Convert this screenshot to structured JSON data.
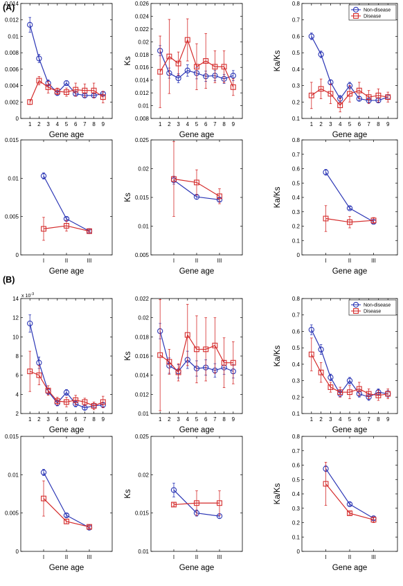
{
  "figure": {
    "panel_labels": [
      "(A)",
      "(B)"
    ]
  },
  "style": {
    "non_disease_color": "#2a35b5",
    "disease_color": "#d42a2a"
  },
  "chart_data": [
    {
      "id": "A1",
      "type": "line",
      "xlabel": "Gene age",
      "ylabel": "Ka",
      "categories": [
        "1",
        "2",
        "3",
        "4",
        "5",
        "6",
        "7",
        "8",
        "9"
      ],
      "yticks": [
        "0",
        "0.002",
        "0.004",
        "0.006",
        "0.008",
        "0.01",
        "0.012",
        "0.014"
      ],
      "ylim": [
        0,
        0.014
      ],
      "series": [
        {
          "name": "Non-disease",
          "values": [
            0.0114,
            0.0073,
            0.0043,
            0.0031,
            0.0043,
            0.003,
            0.0028,
            0.0028,
            0.003
          ],
          "err": [
            0.0009,
            0.0005,
            0.0004,
            0.0003,
            0.0003,
            0.0002,
            0.0002,
            0.0002,
            0.0002
          ]
        },
        {
          "name": "Disease",
          "values": [
            0.002,
            0.0046,
            0.0038,
            0.0033,
            0.0032,
            0.0035,
            0.0034,
            0.0034,
            0.0026
          ],
          "err": [
            0.0003,
            0.0005,
            0.0007,
            0.0004,
            0.0005,
            0.0008,
            0.0008,
            0.0009,
            0.0007
          ]
        }
      ]
    },
    {
      "id": "A2",
      "type": "line",
      "xlabel": "Gene age",
      "ylabel": "Ks",
      "categories": [
        "1",
        "2",
        "3",
        "4",
        "5",
        "6",
        "7",
        "8",
        "9"
      ],
      "yticks": [
        "0.008",
        "0.01",
        "0.012",
        "0.014",
        "0.016",
        "0.018",
        "0.02",
        "0.022",
        "0.024",
        "0.026"
      ],
      "ylim": [
        0.008,
        0.026
      ],
      "series": [
        {
          "name": "Non-disease",
          "values": [
            0.0186,
            0.0151,
            0.0143,
            0.0155,
            0.0151,
            0.0146,
            0.0147,
            0.0142,
            0.0147
          ],
          "err": [
            0.0008,
            0.0008,
            0.0007,
            0.0009,
            0.0009,
            0.0008,
            0.0008,
            0.0007,
            0.0008
          ]
        },
        {
          "name": "Disease",
          "values": [
            0.0153,
            0.0177,
            0.0166,
            0.0203,
            0.0161,
            0.017,
            0.0161,
            0.0161,
            0.0129
          ],
          "err": [
            0.0056,
            0.0058,
            0.0018,
            0.0033,
            0.0036,
            0.0043,
            0.0025,
            0.0025,
            0.0013
          ]
        }
      ]
    },
    {
      "id": "A3",
      "type": "line",
      "xlabel": "Gene age",
      "ylabel": "Ka/Ks",
      "categories": [
        "1",
        "2",
        "3",
        "4",
        "5",
        "6",
        "7",
        "8",
        "9"
      ],
      "yticks": [
        "0.1",
        "0.2",
        "0.3",
        "0.4",
        "0.5",
        "0.6",
        "0.7",
        "0.8"
      ],
      "ylim": [
        0.1,
        0.8
      ],
      "legend": true,
      "series": [
        {
          "name": "Non-disease",
          "values": [
            0.6,
            0.49,
            0.32,
            0.22,
            0.3,
            0.22,
            0.21,
            0.21,
            0.23
          ],
          "err": [
            0.02,
            0.02,
            0.015,
            0.02,
            0.02,
            0.012,
            0.012,
            0.012,
            0.012
          ]
        },
        {
          "name": "Disease",
          "values": [
            0.24,
            0.28,
            0.25,
            0.18,
            0.25,
            0.27,
            0.23,
            0.24,
            0.23
          ],
          "err": [
            0.08,
            0.06,
            0.06,
            0.04,
            0.05,
            0.05,
            0.04,
            0.04,
            0.03
          ]
        }
      ]
    },
    {
      "id": "A4",
      "type": "line",
      "xlabel": "Gene age",
      "ylabel": "Ka",
      "categories": [
        "I",
        "II",
        "III"
      ],
      "yticks": [
        "0",
        "0.005",
        "0.01",
        "0.015"
      ],
      "ylim": [
        0,
        0.015
      ],
      "series": [
        {
          "name": "Non-disease",
          "values": [
            0.0103,
            0.0047,
            0.0031
          ],
          "err": [
            0.0004,
            0.0002,
            0.0001
          ]
        },
        {
          "name": "Disease",
          "values": [
            0.0034,
            0.0038,
            0.0031
          ],
          "err": [
            0.0015,
            0.0007,
            0.0002
          ]
        }
      ]
    },
    {
      "id": "A5",
      "type": "line",
      "xlabel": "Gene age",
      "ylabel": "Ks",
      "categories": [
        "I",
        "II",
        "III"
      ],
      "yticks": [
        "0.005",
        "0.01",
        "0.015",
        "0.02",
        "0.025"
      ],
      "ylim": [
        0.005,
        0.025
      ],
      "series": [
        {
          "name": "Non-disease",
          "values": [
            0.018,
            0.0151,
            0.0146
          ],
          "err": [
            0.0007,
            0.0004,
            0.0003
          ]
        },
        {
          "name": "Disease",
          "values": [
            0.0182,
            0.0176,
            0.0152
          ],
          "err": [
            0.0065,
            0.0022,
            0.0013
          ]
        }
      ]
    },
    {
      "id": "A6",
      "type": "line",
      "xlabel": "Gene age",
      "ylabel": "Ka/Ks",
      "categories": [
        "I",
        "II",
        "III"
      ],
      "yticks": [
        "0",
        "0.1",
        "0.2",
        "0.3",
        "0.4",
        "0.5",
        "0.6",
        "0.7",
        "0.8"
      ],
      "ylim": [
        0,
        0.8
      ],
      "series": [
        {
          "name": "Non-disease",
          "values": [
            0.575,
            0.325,
            0.23
          ],
          "err": [
            0.02,
            0.01,
            0.01
          ]
        },
        {
          "name": "Disease",
          "values": [
            0.253,
            0.228,
            0.24
          ],
          "err": [
            0.09,
            0.04,
            0.02
          ]
        }
      ]
    },
    {
      "id": "B1",
      "type": "line",
      "xlabel": "Gene age",
      "ylabel": "Ka",
      "categories": [
        "1",
        "2",
        "3",
        "4",
        "5",
        "6",
        "7",
        "8",
        "9"
      ],
      "yticks": [
        "2",
        "4",
        "6",
        "8",
        "10",
        "12",
        "14"
      ],
      "ylim": [
        2,
        14
      ],
      "y_multiplier": "x 10",
      "y_multiplier_exp": "-3",
      "series": [
        {
          "name": "Non-disease",
          "values": [
            11.4,
            7.3,
            4.3,
            3.1,
            4.2,
            3.0,
            2.6,
            2.8,
            2.9
          ],
          "err": [
            0.9,
            0.6,
            0.3,
            0.3,
            0.3,
            0.3,
            0.2,
            0.2,
            0.2
          ]
        },
        {
          "name": "Disease",
          "values": [
            6.4,
            6.0,
            4.4,
            3.3,
            3.2,
            3.4,
            3.2,
            2.8,
            3.2
          ],
          "err": [
            2.1,
            1.0,
            0.5,
            0.4,
            0.5,
            0.5,
            0.4,
            0.4,
            0.6
          ]
        }
      ]
    },
    {
      "id": "B2",
      "type": "line",
      "xlabel": "Gene age",
      "ylabel": "Ks",
      "categories": [
        "1",
        "2",
        "3",
        "4",
        "5",
        "6",
        "7",
        "8",
        "9"
      ],
      "yticks": [
        "0.01",
        "0.012",
        "0.014",
        "0.016",
        "0.018",
        "0.02",
        "0.022"
      ],
      "ylim": [
        0.01,
        0.022
      ],
      "series": [
        {
          "name": "Non-disease",
          "values": [
            0.0186,
            0.015,
            0.0144,
            0.0156,
            0.0147,
            0.0148,
            0.0145,
            0.0148,
            0.0144
          ],
          "err": [
            0.0008,
            0.0008,
            0.0007,
            0.0009,
            0.0008,
            0.0008,
            0.0007,
            0.0007,
            0.0007
          ]
        },
        {
          "name": "Disease",
          "values": [
            0.0161,
            0.0154,
            0.0143,
            0.0182,
            0.0167,
            0.0167,
            0.0171,
            0.0153,
            0.0153
          ],
          "err": [
            0.0058,
            0.0013,
            0.0009,
            0.0032,
            0.0035,
            0.0033,
            0.0029,
            0.0026,
            0.0022
          ]
        }
      ]
    },
    {
      "id": "B3",
      "type": "line",
      "xlabel": "Gene age",
      "ylabel": "Ka/Ks",
      "categories": [
        "1",
        "2",
        "3",
        "4",
        "5",
        "6",
        "7",
        "8",
        "9"
      ],
      "yticks": [
        "0.1",
        "0.2",
        "0.3",
        "0.4",
        "0.5",
        "0.6",
        "0.7",
        "0.8"
      ],
      "ylim": [
        0.1,
        0.8
      ],
      "legend": true,
      "series": [
        {
          "name": "Non-disease",
          "values": [
            0.61,
            0.49,
            0.32,
            0.22,
            0.3,
            0.22,
            0.2,
            0.23,
            0.22
          ],
          "err": [
            0.03,
            0.03,
            0.02,
            0.02,
            0.02,
            0.02,
            0.02,
            0.02,
            0.02
          ]
        },
        {
          "name": "Disease",
          "values": [
            0.46,
            0.35,
            0.26,
            0.23,
            0.23,
            0.25,
            0.22,
            0.21,
            0.22
          ],
          "err": [
            0.1,
            0.06,
            0.03,
            0.03,
            0.04,
            0.04,
            0.03,
            0.03,
            0.03
          ]
        }
      ]
    },
    {
      "id": "B4",
      "type": "line",
      "xlabel": "Gene age",
      "ylabel": "Ka",
      "categories": [
        "I",
        "II",
        "III"
      ],
      "yticks": [
        "0",
        "0.005",
        "0.01",
        "0.015"
      ],
      "ylim": [
        0,
        0.015
      ],
      "series": [
        {
          "name": "Non-disease",
          "values": [
            0.0103,
            0.0047,
            0.0031
          ],
          "err": [
            0.0004,
            0.0002,
            0.0001
          ]
        },
        {
          "name": "Disease",
          "values": [
            0.0069,
            0.0039,
            0.0032
          ],
          "err": [
            0.0023,
            0.0003,
            0.0002
          ]
        }
      ]
    },
    {
      "id": "B5",
      "type": "line",
      "xlabel": "Gene age",
      "ylabel": "Ks",
      "categories": [
        "I",
        "II",
        "III"
      ],
      "yticks": [
        "0.01",
        "0.015",
        "0.02",
        "0.025"
      ],
      "ylim": [
        0.01,
        0.025
      ],
      "series": [
        {
          "name": "Non-disease",
          "values": [
            0.018,
            0.015,
            0.0146
          ],
          "err": [
            0.0009,
            0.0004,
            0.0003
          ]
        },
        {
          "name": "Disease",
          "values": [
            0.0161,
            0.0163,
            0.0163
          ],
          "err": [
            0.0002,
            0.0016,
            0.0016
          ]
        }
      ]
    },
    {
      "id": "B6",
      "type": "line",
      "xlabel": "Gene age",
      "ylabel": "Ka/Ks",
      "categories": [
        "I",
        "II",
        "III"
      ],
      "yticks": [
        "0",
        "0.1",
        "0.2",
        "0.3",
        "0.4",
        "0.5",
        "0.6",
        "0.7",
        "0.8"
      ],
      "ylim": [
        0,
        0.8
      ],
      "series": [
        {
          "name": "Non-disease",
          "values": [
            0.575,
            0.328,
            0.23
          ],
          "err": [
            0.02,
            0.01,
            0.01
          ]
        },
        {
          "name": "Disease",
          "values": [
            0.47,
            0.265,
            0.22
          ],
          "err": [
            0.15,
            0.01,
            0.02
          ]
        }
      ]
    }
  ]
}
